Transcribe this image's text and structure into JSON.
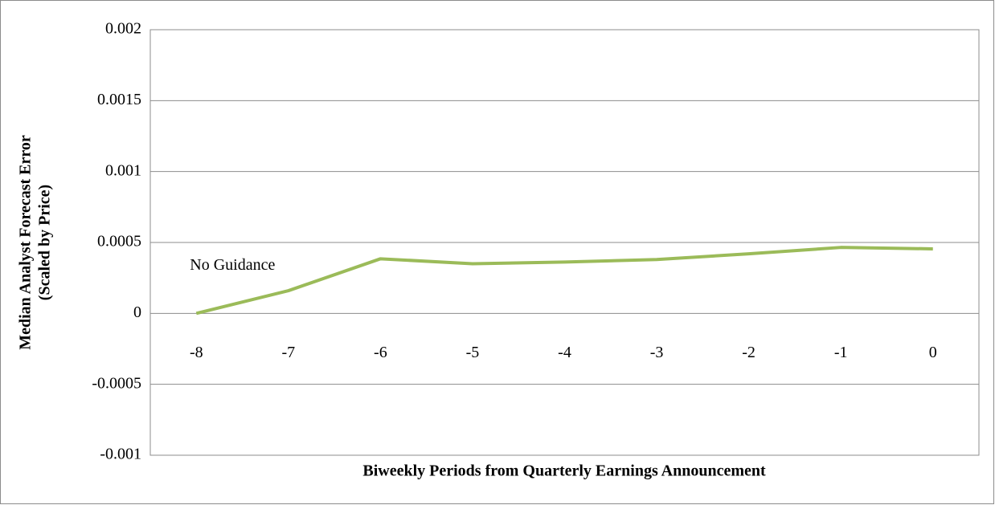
{
  "chart_data": {
    "type": "line",
    "x_label": "Biweekly Periods from Quarterly Earnings Announcement",
    "y_label": [
      "Median Analyst Forecast Error",
      "(Scaled by Price)"
    ],
    "categories": [
      "-8",
      "-7",
      "-6",
      "-5",
      "-4",
      "-3",
      "-2",
      "-1",
      "0"
    ],
    "series": [
      {
        "name": "No Guidance",
        "color": "#9bbb59",
        "values": [
          0,
          0.00016,
          0.000385,
          0.00035,
          0.000362,
          0.00038,
          0.00042,
          0.000465,
          0.000455
        ]
      }
    ],
    "ylim": [
      -0.001,
      0.002
    ],
    "yticks": [
      -0.001,
      -0.0005,
      0,
      0.0005,
      0.001,
      0.0015,
      0.002
    ],
    "grid": true
  }
}
